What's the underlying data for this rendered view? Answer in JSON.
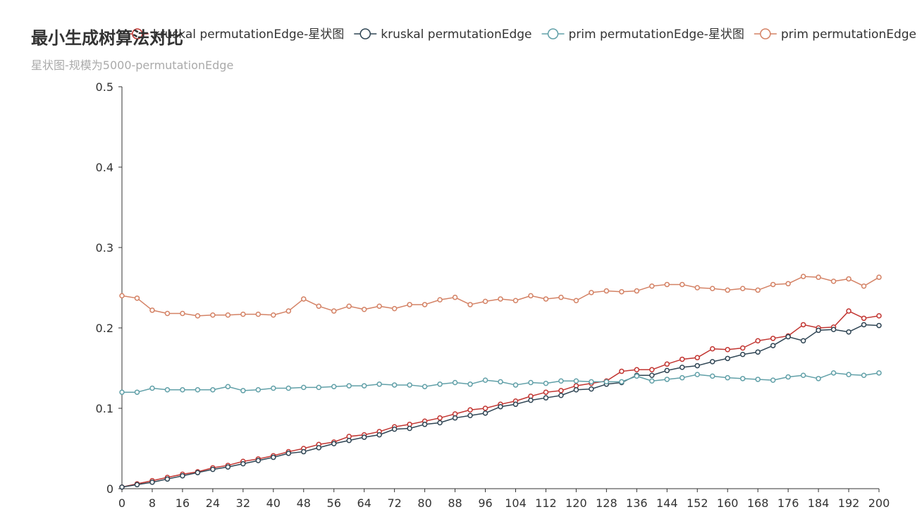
{
  "chart_data": {
    "type": "line",
    "title": "最小生成树算法对比",
    "subtitle": "星状图-规模为5000-permutationEdge",
    "xlabel": "",
    "ylabel": "",
    "ylim": [
      0,
      0.5
    ],
    "xlim": [
      0,
      200
    ],
    "grid": false,
    "legend_position": "top-right",
    "x_ticks": [
      "0",
      "8",
      "16",
      "24",
      "32",
      "40",
      "48",
      "56",
      "64",
      "72",
      "80",
      "88",
      "96",
      "104",
      "112",
      "120",
      "128",
      "136",
      "144",
      "152",
      "160",
      "168",
      "176",
      "184",
      "192",
      "200"
    ],
    "y_ticks": [
      "0",
      "0.1",
      "0.2",
      "0.3",
      "0.4",
      "0.5"
    ],
    "x": [
      0,
      4,
      8,
      12,
      16,
      20,
      24,
      28,
      32,
      36,
      40,
      44,
      48,
      52,
      56,
      60,
      64,
      68,
      72,
      76,
      80,
      84,
      88,
      92,
      96,
      100,
      104,
      108,
      112,
      116,
      120,
      124,
      128,
      132,
      136,
      140,
      144,
      148,
      152,
      156,
      160,
      164,
      168,
      172,
      176,
      180,
      184,
      188,
      192,
      196,
      200
    ],
    "series": [
      {
        "name": "kruskal permutationEdge-星状图",
        "color": "#c23531",
        "values": [
          0.002,
          0.006,
          0.01,
          0.014,
          0.018,
          0.021,
          0.026,
          0.029,
          0.034,
          0.037,
          0.041,
          0.046,
          0.05,
          0.055,
          0.058,
          0.065,
          0.067,
          0.071,
          0.077,
          0.08,
          0.084,
          0.088,
          0.093,
          0.098,
          0.1,
          0.105,
          0.109,
          0.115,
          0.12,
          0.122,
          0.128,
          0.131,
          0.134,
          0.146,
          0.148,
          0.148,
          0.155,
          0.161,
          0.163,
          0.174,
          0.173,
          0.175,
          0.184,
          0.187,
          0.19,
          0.204,
          0.2,
          0.201,
          0.221,
          0.212,
          0.215
        ]
      },
      {
        "name": "kruskal permutationEdge",
        "color": "#2f4554",
        "values": [
          0.002,
          0.005,
          0.008,
          0.012,
          0.016,
          0.02,
          0.024,
          0.027,
          0.031,
          0.035,
          0.039,
          0.044,
          0.046,
          0.051,
          0.056,
          0.06,
          0.064,
          0.067,
          0.074,
          0.075,
          0.08,
          0.082,
          0.088,
          0.091,
          0.094,
          0.102,
          0.105,
          0.11,
          0.113,
          0.116,
          0.123,
          0.124,
          0.13,
          0.132,
          0.141,
          0.141,
          0.147,
          0.151,
          0.153,
          0.158,
          0.162,
          0.167,
          0.17,
          0.178,
          0.189,
          0.184,
          0.197,
          0.198,
          0.195,
          0.204,
          0.203
        ]
      },
      {
        "name": "prim permutationEdge-星状图",
        "color": "#61a0a8",
        "values": [
          0.12,
          0.12,
          0.125,
          0.123,
          0.123,
          0.123,
          0.123,
          0.127,
          0.122,
          0.123,
          0.125,
          0.125,
          0.126,
          0.126,
          0.127,
          0.128,
          0.128,
          0.13,
          0.129,
          0.129,
          0.127,
          0.13,
          0.132,
          0.13,
          0.135,
          0.133,
          0.129,
          0.132,
          0.131,
          0.134,
          0.134,
          0.133,
          0.133,
          0.133,
          0.14,
          0.134,
          0.136,
          0.138,
          0.142,
          0.14,
          0.138,
          0.137,
          0.136,
          0.135,
          0.139,
          0.141,
          0.137,
          0.144,
          0.142,
          0.141,
          0.144
        ]
      },
      {
        "name": "prim permutationEdge",
        "color": "#d48265",
        "values": [
          0.24,
          0.237,
          0.222,
          0.218,
          0.218,
          0.215,
          0.216,
          0.216,
          0.217,
          0.217,
          0.216,
          0.221,
          0.236,
          0.227,
          0.221,
          0.227,
          0.223,
          0.227,
          0.224,
          0.229,
          0.229,
          0.235,
          0.238,
          0.229,
          0.233,
          0.236,
          0.234,
          0.24,
          0.236,
          0.238,
          0.234,
          0.244,
          0.246,
          0.245,
          0.246,
          0.252,
          0.254,
          0.254,
          0.25,
          0.249,
          0.247,
          0.249,
          0.247,
          0.254,
          0.255,
          0.264,
          0.263,
          0.258,
          0.261,
          0.252,
          0.263
        ]
      }
    ]
  }
}
